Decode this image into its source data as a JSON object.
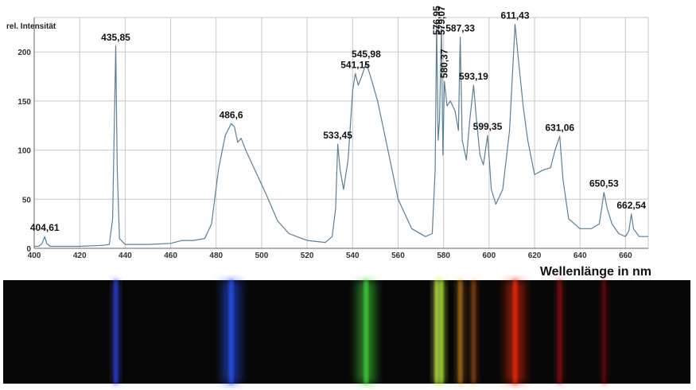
{
  "chart_data": {
    "type": "line",
    "title": "",
    "ylabel": "rel. Intensität",
    "xlabel": "Wellenlänge in nm",
    "xlim": [
      400,
      670
    ],
    "ylim": [
      0,
      235
    ],
    "x_ticks": [
      400,
      420,
      440,
      460,
      480,
      500,
      520,
      540,
      560,
      580,
      600,
      620,
      640,
      660
    ],
    "y_ticks": [
      0,
      50,
      100,
      150,
      200
    ],
    "grid": true,
    "series": [
      {
        "color": "#5b7f96",
        "points": [
          [
            400,
            2
          ],
          [
            402,
            2
          ],
          [
            403.5,
            5
          ],
          [
            404.61,
            12
          ],
          [
            405.5,
            5
          ],
          [
            407,
            2
          ],
          [
            420,
            2
          ],
          [
            430,
            3
          ],
          [
            433,
            4
          ],
          [
            434.5,
            30
          ],
          [
            435.2,
            120
          ],
          [
            435.85,
            206
          ],
          [
            436.5,
            80
          ],
          [
            437.5,
            10
          ],
          [
            440,
            4
          ],
          [
            450,
            4
          ],
          [
            460,
            5
          ],
          [
            465,
            8
          ],
          [
            470,
            8
          ],
          [
            475,
            10
          ],
          [
            478,
            25
          ],
          [
            481,
            80
          ],
          [
            484,
            115
          ],
          [
            486.6,
            127
          ],
          [
            488,
            124
          ],
          [
            489.5,
            108
          ],
          [
            491,
            112
          ],
          [
            493,
            100
          ],
          [
            497,
            80
          ],
          [
            502,
            55
          ],
          [
            507,
            28
          ],
          [
            512,
            15
          ],
          [
            520,
            8
          ],
          [
            528,
            6
          ],
          [
            531,
            12
          ],
          [
            532.5,
            40
          ],
          [
            533.45,
            106
          ],
          [
            534.5,
            80
          ],
          [
            536,
            60
          ],
          [
            538,
            90
          ],
          [
            540,
            160
          ],
          [
            541.15,
            178
          ],
          [
            542.5,
            166
          ],
          [
            544,
            175
          ],
          [
            545.98,
            189
          ],
          [
            547.5,
            178
          ],
          [
            551,
            150
          ],
          [
            556,
            95
          ],
          [
            560,
            50
          ],
          [
            566,
            20
          ],
          [
            572,
            12
          ],
          [
            575,
            15
          ],
          [
            576.3,
            80
          ],
          [
            576.95,
            230
          ],
          [
            577.6,
            110
          ],
          [
            578.2,
            130
          ],
          [
            579.07,
            226
          ],
          [
            579.7,
            95
          ],
          [
            580.37,
            170
          ],
          [
            581.5,
            145
          ],
          [
            583,
            150
          ],
          [
            585,
            140
          ],
          [
            586.5,
            120
          ],
          [
            587.33,
            215
          ],
          [
            588.2,
            110
          ],
          [
            590,
            90
          ],
          [
            591.5,
            130
          ],
          [
            593.19,
            166
          ],
          [
            594.5,
            130
          ],
          [
            596,
            95
          ],
          [
            597.5,
            85
          ],
          [
            599.35,
            115
          ],
          [
            601,
            60
          ],
          [
            603,
            45
          ],
          [
            606,
            60
          ],
          [
            609,
            120
          ],
          [
            611.43,
            228
          ],
          [
            613,
            190
          ],
          [
            615,
            145
          ],
          [
            617,
            110
          ],
          [
            620,
            75
          ],
          [
            624,
            80
          ],
          [
            627,
            82
          ],
          [
            629,
            100
          ],
          [
            631.06,
            114
          ],
          [
            632.5,
            70
          ],
          [
            635,
            30
          ],
          [
            640,
            20
          ],
          [
            645,
            20
          ],
          [
            648.5,
            25
          ],
          [
            650.53,
            57
          ],
          [
            652,
            40
          ],
          [
            654,
            25
          ],
          [
            657,
            15
          ],
          [
            660,
            12
          ],
          [
            661.5,
            18
          ],
          [
            662.54,
            35
          ],
          [
            663.5,
            20
          ],
          [
            666,
            12
          ],
          [
            670,
            12
          ]
        ]
      }
    ],
    "annotations": [
      {
        "text": "404,61",
        "x": 404.61,
        "y": 12
      },
      {
        "text": "435,85",
        "x": 435.85,
        "y": 206
      },
      {
        "text": "486,6",
        "x": 486.6,
        "y": 127
      },
      {
        "text": "533,45",
        "x": 533.45,
        "y": 106
      },
      {
        "text": "541,15",
        "x": 541.15,
        "y": 178
      },
      {
        "text": "545,98",
        "x": 545.98,
        "y": 189
      },
      {
        "text": "576,95",
        "x": 576.95,
        "y": 230,
        "rotated": true
      },
      {
        "text": "579,07",
        "x": 579.07,
        "y": 226,
        "rotated": true
      },
      {
        "text": "580,37",
        "x": 580.37,
        "y": 170,
        "rotated": true
      },
      {
        "text": "587,33",
        "x": 587.33,
        "y": 215
      },
      {
        "text": "593,19",
        "x": 593.19,
        "y": 166
      },
      {
        "text": "599,35",
        "x": 599.35,
        "y": 115
      },
      {
        "text": "611,43",
        "x": 611.43,
        "y": 228
      },
      {
        "text": "631,06",
        "x": 631.06,
        "y": 114
      },
      {
        "text": "650,53",
        "x": 650.53,
        "y": 57
      },
      {
        "text": "662,54",
        "x": 662.54,
        "y": 35
      }
    ],
    "spectrum_band": {
      "background": "#070707",
      "lines": [
        {
          "wavelength": 435.85,
          "color": "#3a4cff",
          "intensity": 0.9
        },
        {
          "wavelength": 486.6,
          "color": "#2a55ff",
          "intensity": 1.0
        },
        {
          "wavelength": 545.98,
          "color": "#46e040",
          "intensity": 1.0
        },
        {
          "wavelength": 576.95,
          "color": "#d8ff50",
          "intensity": 0.9
        },
        {
          "wavelength": 579.07,
          "color": "#c8ff40",
          "intensity": 0.9
        },
        {
          "wavelength": 587.33,
          "color": "#ffa020",
          "intensity": 0.7
        },
        {
          "wavelength": 593.19,
          "color": "#ff7a20",
          "intensity": 0.5
        },
        {
          "wavelength": 611.43,
          "color": "#ff2a10",
          "intensity": 1.0
        },
        {
          "wavelength": 631.06,
          "color": "#d81818",
          "intensity": 0.6
        },
        {
          "wavelength": 650.53,
          "color": "#b81010",
          "intensity": 0.5
        }
      ]
    }
  }
}
